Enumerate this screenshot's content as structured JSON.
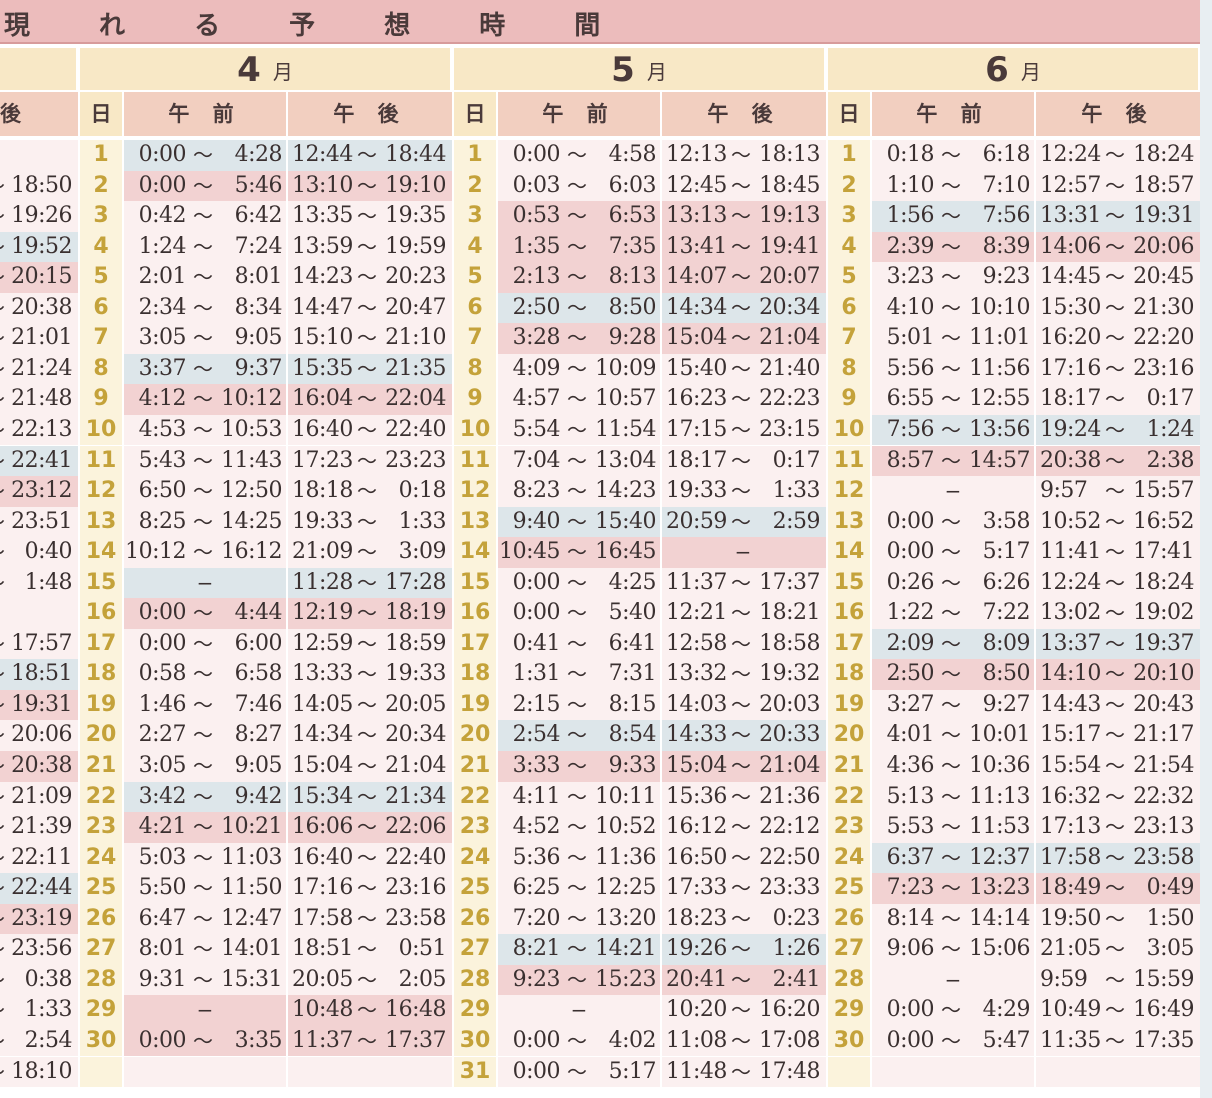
{
  "title": "現 れ る 予 想 時 間",
  "subheaders": {
    "day": "日",
    "am": "午 前",
    "pm": "午 後",
    "prev_pm": "後"
  },
  "months": [
    {
      "num": "4",
      "unit": "月"
    },
    {
      "num": "5",
      "unit": "月"
    },
    {
      "num": "6",
      "unit": "月"
    }
  ],
  "tilde": "〜",
  "dash": "−",
  "prev_col": [
    "",
    "18:50",
    "19:26",
    "19:52",
    "20:15",
    "20:38",
    "21:01",
    "21:24",
    "21:48",
    "22:13",
    "22:41",
    "23:12",
    "23:51",
    "0:40",
    "1:48",
    "",
    "17:57",
    "18:51",
    "19:31",
    "20:06",
    "20:38",
    "21:09",
    "21:39",
    "22:11",
    "22:44",
    "23:19",
    "23:56",
    "0:38",
    "1:33",
    "2:54",
    "18:10"
  ],
  "prev_colors": [
    "none",
    "none",
    "none",
    "blue",
    "pink",
    "none",
    "none",
    "none",
    "none",
    "none",
    "blue",
    "pink",
    "none",
    "none",
    "none",
    "none",
    "none",
    "blue",
    "pink",
    "none",
    "pink",
    "none",
    "none",
    "none",
    "blue",
    "pink",
    "none",
    "none",
    "none",
    "none",
    "none"
  ],
  "april": [
    {
      "d": "1",
      "a1": "0:00",
      "a2": "4:28",
      "p1": "12:44",
      "p2": "18:44",
      "c": "blue"
    },
    {
      "d": "2",
      "a1": "0:00",
      "a2": "5:46",
      "p1": "13:10",
      "p2": "19:10",
      "c": "pink"
    },
    {
      "d": "3",
      "a1": "0:42",
      "a2": "6:42",
      "p1": "13:35",
      "p2": "19:35",
      "c": "none"
    },
    {
      "d": "4",
      "a1": "1:24",
      "a2": "7:24",
      "p1": "13:59",
      "p2": "19:59",
      "c": "none"
    },
    {
      "d": "5",
      "a1": "2:01",
      "a2": "8:01",
      "p1": "14:23",
      "p2": "20:23",
      "c": "none"
    },
    {
      "d": "6",
      "a1": "2:34",
      "a2": "8:34",
      "p1": "14:47",
      "p2": "20:47",
      "c": "none"
    },
    {
      "d": "7",
      "a1": "3:05",
      "a2": "9:05",
      "p1": "15:10",
      "p2": "21:10",
      "c": "none"
    },
    {
      "d": "8",
      "a1": "3:37",
      "a2": "9:37",
      "p1": "15:35",
      "p2": "21:35",
      "c": "blue"
    },
    {
      "d": "9",
      "a1": "4:12",
      "a2": "10:12",
      "p1": "16:04",
      "p2": "22:04",
      "c": "pink"
    },
    {
      "d": "10",
      "a1": "4:53",
      "a2": "10:53",
      "p1": "16:40",
      "p2": "22:40",
      "c": "none"
    },
    {
      "d": "11",
      "a1": "5:43",
      "a2": "11:43",
      "p1": "17:23",
      "p2": "23:23",
      "c": "none"
    },
    {
      "d": "12",
      "a1": "6:50",
      "a2": "12:50",
      "p1": "18:18",
      "p2": "0:18",
      "c": "none"
    },
    {
      "d": "13",
      "a1": "8:25",
      "a2": "14:25",
      "p1": "19:33",
      "p2": "1:33",
      "c": "none"
    },
    {
      "d": "14",
      "a1": "10:12",
      "a2": "16:12",
      "p1": "21:09",
      "p2": "3:09",
      "c": "none"
    },
    {
      "d": "15",
      "a1": "",
      "a2": "",
      "p1": "11:28",
      "p2": "17:28",
      "c": "blue",
      "adash": true
    },
    {
      "d": "16",
      "a1": "0:00",
      "a2": "4:44",
      "p1": "12:19",
      "p2": "18:19",
      "c": "pink"
    },
    {
      "d": "17",
      "a1": "0:00",
      "a2": "6:00",
      "p1": "12:59",
      "p2": "18:59",
      "c": "none"
    },
    {
      "d": "18",
      "a1": "0:58",
      "a2": "6:58",
      "p1": "13:33",
      "p2": "19:33",
      "c": "none"
    },
    {
      "d": "19",
      "a1": "1:46",
      "a2": "7:46",
      "p1": "14:05",
      "p2": "20:05",
      "c": "none"
    },
    {
      "d": "20",
      "a1": "2:27",
      "a2": "8:27",
      "p1": "14:34",
      "p2": "20:34",
      "c": "none"
    },
    {
      "d": "21",
      "a1": "3:05",
      "a2": "9:05",
      "p1": "15:04",
      "p2": "21:04",
      "c": "none"
    },
    {
      "d": "22",
      "a1": "3:42",
      "a2": "9:42",
      "p1": "15:34",
      "p2": "21:34",
      "c": "blue"
    },
    {
      "d": "23",
      "a1": "4:21",
      "a2": "10:21",
      "p1": "16:06",
      "p2": "22:06",
      "c": "pink"
    },
    {
      "d": "24",
      "a1": "5:03",
      "a2": "11:03",
      "p1": "16:40",
      "p2": "22:40",
      "c": "none"
    },
    {
      "d": "25",
      "a1": "5:50",
      "a2": "11:50",
      "p1": "17:16",
      "p2": "23:16",
      "c": "none"
    },
    {
      "d": "26",
      "a1": "6:47",
      "a2": "12:47",
      "p1": "17:58",
      "p2": "23:58",
      "c": "none"
    },
    {
      "d": "27",
      "a1": "8:01",
      "a2": "14:01",
      "p1": "18:51",
      "p2": "0:51",
      "c": "none"
    },
    {
      "d": "28",
      "a1": "9:31",
      "a2": "15:31",
      "p1": "20:05",
      "p2": "2:05",
      "c": "none"
    },
    {
      "d": "29",
      "a1": "",
      "a2": "",
      "p1": "10:48",
      "p2": "16:48",
      "c": "pink",
      "adash": true
    },
    {
      "d": "30",
      "a1": "0:00",
      "a2": "3:35",
      "p1": "11:37",
      "p2": "17:37",
      "c": "pink"
    },
    {
      "d": "",
      "a1": "",
      "a2": "",
      "p1": "",
      "p2": "",
      "c": "none",
      "empty": true
    }
  ],
  "may": [
    {
      "d": "1",
      "a1": "0:00",
      "a2": "4:58",
      "p1": "12:13",
      "p2": "18:13",
      "c": "none"
    },
    {
      "d": "2",
      "a1": "0:03",
      "a2": "6:03",
      "p1": "12:45",
      "p2": "18:45",
      "c": "none"
    },
    {
      "d": "3",
      "a1": "0:53",
      "a2": "6:53",
      "p1": "13:13",
      "p2": "19:13",
      "c": "pink"
    },
    {
      "d": "4",
      "a1": "1:35",
      "a2": "7:35",
      "p1": "13:41",
      "p2": "19:41",
      "c": "pink"
    },
    {
      "d": "5",
      "a1": "2:13",
      "a2": "8:13",
      "p1": "14:07",
      "p2": "20:07",
      "c": "pink"
    },
    {
      "d": "6",
      "a1": "2:50",
      "a2": "8:50",
      "p1": "14:34",
      "p2": "20:34",
      "c": "blue"
    },
    {
      "d": "7",
      "a1": "3:28",
      "a2": "9:28",
      "p1": "15:04",
      "p2": "21:04",
      "c": "pink"
    },
    {
      "d": "8",
      "a1": "4:09",
      "a2": "10:09",
      "p1": "15:40",
      "p2": "21:40",
      "c": "none"
    },
    {
      "d": "9",
      "a1": "4:57",
      "a2": "10:57",
      "p1": "16:23",
      "p2": "22:23",
      "c": "none"
    },
    {
      "d": "10",
      "a1": "5:54",
      "a2": "11:54",
      "p1": "17:15",
      "p2": "23:15",
      "c": "none"
    },
    {
      "d": "11",
      "a1": "7:04",
      "a2": "13:04",
      "p1": "18:17",
      "p2": "0:17",
      "c": "none"
    },
    {
      "d": "12",
      "a1": "8:23",
      "a2": "14:23",
      "p1": "19:33",
      "p2": "1:33",
      "c": "none"
    },
    {
      "d": "13",
      "a1": "9:40",
      "a2": "15:40",
      "p1": "20:59",
      "p2": "2:59",
      "c": "blue"
    },
    {
      "d": "14",
      "a1": "10:45",
      "a2": "16:45",
      "p1": "",
      "p2": "",
      "c": "pink",
      "pdash": true
    },
    {
      "d": "15",
      "a1": "0:00",
      "a2": "4:25",
      "p1": "11:37",
      "p2": "17:37",
      "c": "none"
    },
    {
      "d": "16",
      "a1": "0:00",
      "a2": "5:40",
      "p1": "12:21",
      "p2": "18:21",
      "c": "none"
    },
    {
      "d": "17",
      "a1": "0:41",
      "a2": "6:41",
      "p1": "12:58",
      "p2": "18:58",
      "c": "none"
    },
    {
      "d": "18",
      "a1": "1:31",
      "a2": "7:31",
      "p1": "13:32",
      "p2": "19:32",
      "c": "none"
    },
    {
      "d": "19",
      "a1": "2:15",
      "a2": "8:15",
      "p1": "14:03",
      "p2": "20:03",
      "c": "none"
    },
    {
      "d": "20",
      "a1": "2:54",
      "a2": "8:54",
      "p1": "14:33",
      "p2": "20:33",
      "c": "blue"
    },
    {
      "d": "21",
      "a1": "3:33",
      "a2": "9:33",
      "p1": "15:04",
      "p2": "21:04",
      "c": "pink"
    },
    {
      "d": "22",
      "a1": "4:11",
      "a2": "10:11",
      "p1": "15:36",
      "p2": "21:36",
      "c": "none"
    },
    {
      "d": "23",
      "a1": "4:52",
      "a2": "10:52",
      "p1": "16:12",
      "p2": "22:12",
      "c": "none"
    },
    {
      "d": "24",
      "a1": "5:36",
      "a2": "11:36",
      "p1": "16:50",
      "p2": "22:50",
      "c": "none"
    },
    {
      "d": "25",
      "a1": "6:25",
      "a2": "12:25",
      "p1": "17:33",
      "p2": "23:33",
      "c": "none"
    },
    {
      "d": "26",
      "a1": "7:20",
      "a2": "13:20",
      "p1": "18:23",
      "p2": "0:23",
      "c": "none"
    },
    {
      "d": "27",
      "a1": "8:21",
      "a2": "14:21",
      "p1": "19:26",
      "p2": "1:26",
      "c": "blue"
    },
    {
      "d": "28",
      "a1": "9:23",
      "a2": "15:23",
      "p1": "20:41",
      "p2": "2:41",
      "c": "pink"
    },
    {
      "d": "29",
      "a1": "",
      "a2": "",
      "p1": "10:20",
      "p2": "16:20",
      "c": "none",
      "adash": true
    },
    {
      "d": "30",
      "a1": "0:00",
      "a2": "4:02",
      "p1": "11:08",
      "p2": "17:08",
      "c": "none"
    },
    {
      "d": "31",
      "a1": "0:00",
      "a2": "5:17",
      "p1": "11:48",
      "p2": "17:48",
      "c": "none"
    }
  ],
  "june": [
    {
      "d": "1",
      "a1": "0:18",
      "a2": "6:18",
      "p1": "12:24",
      "p2": "18:24",
      "c": "none"
    },
    {
      "d": "2",
      "a1": "1:10",
      "a2": "7:10",
      "p1": "12:57",
      "p2": "18:57",
      "c": "none"
    },
    {
      "d": "3",
      "a1": "1:56",
      "a2": "7:56",
      "p1": "13:31",
      "p2": "19:31",
      "c": "blue"
    },
    {
      "d": "4",
      "a1": "2:39",
      "a2": "8:39",
      "p1": "14:06",
      "p2": "20:06",
      "c": "pink"
    },
    {
      "d": "5",
      "a1": "3:23",
      "a2": "9:23",
      "p1": "14:45",
      "p2": "20:45",
      "c": "none"
    },
    {
      "d": "6",
      "a1": "4:10",
      "a2": "10:10",
      "p1": "15:30",
      "p2": "21:30",
      "c": "none"
    },
    {
      "d": "7",
      "a1": "5:01",
      "a2": "11:01",
      "p1": "16:20",
      "p2": "22:20",
      "c": "none"
    },
    {
      "d": "8",
      "a1": "5:56",
      "a2": "11:56",
      "p1": "17:16",
      "p2": "23:16",
      "c": "none"
    },
    {
      "d": "9",
      "a1": "6:55",
      "a2": "12:55",
      "p1": "18:17",
      "p2": "0:17",
      "c": "none"
    },
    {
      "d": "10",
      "a1": "7:56",
      "a2": "13:56",
      "p1": "19:24",
      "p2": "1:24",
      "c": "blue"
    },
    {
      "d": "11",
      "a1": "8:57",
      "a2": "14:57",
      "p1": "20:38",
      "p2": "2:38",
      "c": "pink"
    },
    {
      "d": "12",
      "a1": "",
      "a2": "",
      "p1": "9:57",
      "p2": "15:57",
      "c": "none",
      "adash": true
    },
    {
      "d": "13",
      "a1": "0:00",
      "a2": "3:58",
      "p1": "10:52",
      "p2": "16:52",
      "c": "none"
    },
    {
      "d": "14",
      "a1": "0:00",
      "a2": "5:17",
      "p1": "11:41",
      "p2": "17:41",
      "c": "none"
    },
    {
      "d": "15",
      "a1": "0:26",
      "a2": "6:26",
      "p1": "12:24",
      "p2": "18:24",
      "c": "none"
    },
    {
      "d": "16",
      "a1": "1:22",
      "a2": "7:22",
      "p1": "13:02",
      "p2": "19:02",
      "c": "none"
    },
    {
      "d": "17",
      "a1": "2:09",
      "a2": "8:09",
      "p1": "13:37",
      "p2": "19:37",
      "c": "blue"
    },
    {
      "d": "18",
      "a1": "2:50",
      "a2": "8:50",
      "p1": "14:10",
      "p2": "20:10",
      "c": "pink"
    },
    {
      "d": "19",
      "a1": "3:27",
      "a2": "9:27",
      "p1": "14:43",
      "p2": "20:43",
      "c": "none"
    },
    {
      "d": "20",
      "a1": "4:01",
      "a2": "10:01",
      "p1": "15:17",
      "p2": "21:17",
      "c": "none"
    },
    {
      "d": "21",
      "a1": "4:36",
      "a2": "10:36",
      "p1": "15:54",
      "p2": "21:54",
      "c": "none"
    },
    {
      "d": "22",
      "a1": "5:13",
      "a2": "11:13",
      "p1": "16:32",
      "p2": "22:32",
      "c": "none"
    },
    {
      "d": "23",
      "a1": "5:53",
      "a2": "11:53",
      "p1": "17:13",
      "p2": "23:13",
      "c": "none"
    },
    {
      "d": "24",
      "a1": "6:37",
      "a2": "12:37",
      "p1": "17:58",
      "p2": "23:58",
      "c": "blue"
    },
    {
      "d": "25",
      "a1": "7:23",
      "a2": "13:23",
      "p1": "18:49",
      "p2": "0:49",
      "c": "pink"
    },
    {
      "d": "26",
      "a1": "8:14",
      "a2": "14:14",
      "p1": "19:50",
      "p2": "1:50",
      "c": "none"
    },
    {
      "d": "27",
      "a1": "9:06",
      "a2": "15:06",
      "p1": "21:05",
      "p2": "3:05",
      "c": "none"
    },
    {
      "d": "28",
      "a1": "",
      "a2": "",
      "p1": "9:59",
      "p2": "15:59",
      "c": "none",
      "adash": true
    },
    {
      "d": "29",
      "a1": "0:00",
      "a2": "4:29",
      "p1": "10:49",
      "p2": "16:49",
      "c": "none"
    },
    {
      "d": "30",
      "a1": "0:00",
      "a2": "5:47",
      "p1": "11:35",
      "p2": "17:35",
      "c": "none"
    },
    {
      "d": "",
      "a1": "",
      "a2": "",
      "p1": "",
      "p2": "",
      "c": "none",
      "empty": true
    }
  ],
  "colors": {
    "blue": "#dde6ea",
    "pink": "#f2d2d2",
    "none": "#fbf0f0",
    "day_num": "#c4a23a",
    "header": "#f8e8c6",
    "title_bar": "#ecbcbc"
  }
}
